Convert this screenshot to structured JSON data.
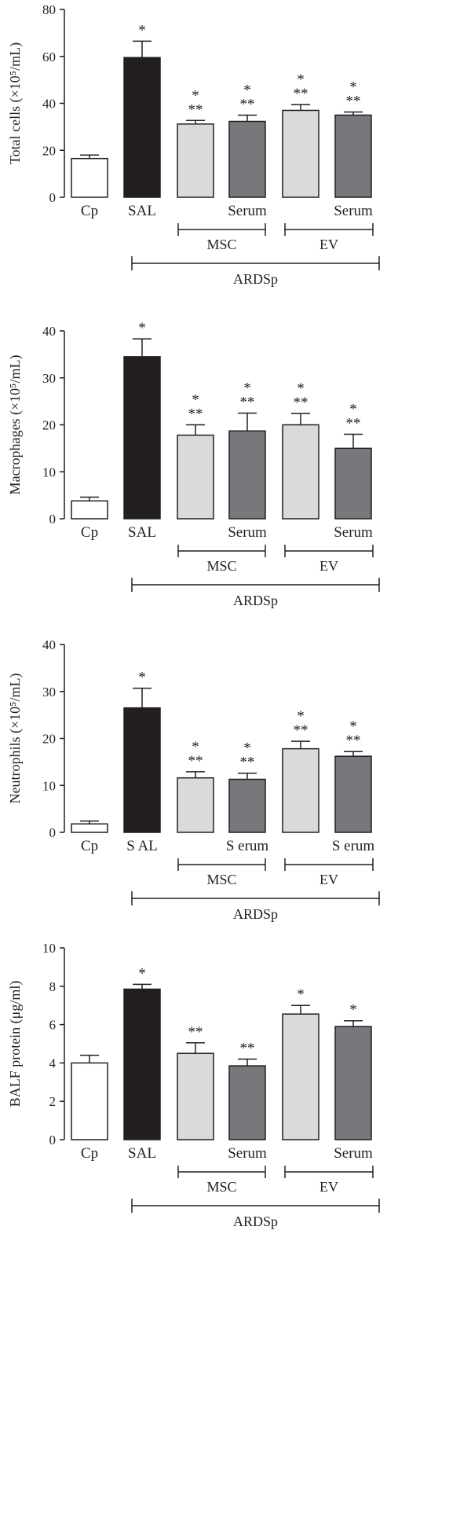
{
  "colors": {
    "axis": "#231f20",
    "white_bar": "#ffffff",
    "black_bar": "#231f20",
    "light_gray_bar": "#d9dadb",
    "dark_gray_bar": "#77787b"
  },
  "chart_data": [
    {
      "type": "bar",
      "ylabel": "Total cells (×10⁵/mL)",
      "ylim": [
        0,
        80
      ],
      "yticks": [
        "0",
        "20",
        "40",
        "60",
        "80"
      ],
      "categories": [
        "Cp",
        "SAL",
        "",
        "Serum",
        "",
        "Serum"
      ],
      "values": [
        16.5,
        59.5,
        31.2,
        32.3,
        37.0,
        35.0
      ],
      "errors": [
        1.5,
        7.0,
        1.5,
        2.7,
        2.5,
        1.3
      ],
      "fills": [
        "white",
        "black",
        "lightgray",
        "darkgray",
        "lightgray",
        "darkgray"
      ],
      "significance": [
        [],
        [
          "*"
        ],
        [
          "*",
          "**"
        ],
        [
          "*",
          "**"
        ],
        [
          "*",
          "**"
        ],
        [
          "*",
          "**"
        ]
      ],
      "groups": [
        "MSC",
        "EV"
      ],
      "supergroup": "ARDSp"
    },
    {
      "type": "bar",
      "ylabel": "Macrophages (×10⁵/mL)",
      "ylim": [
        0,
        40
      ],
      "yticks": [
        "0",
        "10",
        "20",
        "30",
        "40"
      ],
      "categories": [
        "Cp",
        "SAL",
        "",
        "Serum",
        "",
        "Serum"
      ],
      "values": [
        3.8,
        34.5,
        17.8,
        18.7,
        20.0,
        15.0
      ],
      "errors": [
        0.8,
        3.8,
        2.2,
        3.8,
        2.4,
        3.0
      ],
      "fills": [
        "white",
        "black",
        "lightgray",
        "darkgray",
        "lightgray",
        "darkgray"
      ],
      "significance": [
        [],
        [
          "*"
        ],
        [
          "*",
          "**"
        ],
        [
          "*",
          "**"
        ],
        [
          "*",
          "**"
        ],
        [
          "*",
          "**"
        ]
      ],
      "groups": [
        "MSC",
        "EV"
      ],
      "supergroup": "ARDSp"
    },
    {
      "type": "bar",
      "ylabel": "Neutrophils (×10⁵/mL)",
      "ylim": [
        0,
        40
      ],
      "yticks": [
        "0",
        "10",
        "20",
        "30",
        "40"
      ],
      "categories": [
        "Cp",
        "S AL",
        "",
        "S erum",
        "",
        "S erum"
      ],
      "values": [
        1.8,
        26.5,
        11.6,
        11.3,
        17.8,
        16.2
      ],
      "errors": [
        0.6,
        4.2,
        1.3,
        1.3,
        1.6,
        1.0
      ],
      "fills": [
        "white",
        "black",
        "lightgray",
        "darkgray",
        "lightgray",
        "darkgray"
      ],
      "significance": [
        [],
        [
          "*"
        ],
        [
          "*",
          "**"
        ],
        [
          "*",
          "**"
        ],
        [
          "*",
          "**"
        ],
        [
          "*",
          "**"
        ]
      ],
      "groups": [
        "MSC",
        "EV"
      ],
      "supergroup": "ARDSp"
    },
    {
      "type": "bar",
      "ylabel": "BALF protein (μg/ml)",
      "ylim": [
        0,
        10
      ],
      "yticks": [
        "0",
        "2",
        "4",
        "6",
        "8",
        "10"
      ],
      "categories": [
        "Cp",
        "SAL",
        "",
        "Serum",
        "",
        "Serum"
      ],
      "values": [
        4.0,
        7.85,
        4.5,
        3.85,
        6.55,
        5.9
      ],
      "errors": [
        0.4,
        0.25,
        0.55,
        0.35,
        0.45,
        0.3
      ],
      "fills": [
        "white",
        "black",
        "lightgray",
        "darkgray",
        "lightgray",
        "darkgray"
      ],
      "significance": [
        [],
        [
          "*"
        ],
        [
          "**"
        ],
        [
          "**"
        ],
        [
          "*"
        ],
        [
          "*"
        ]
      ],
      "groups": [
        "MSC",
        "EV"
      ],
      "supergroup": "ARDSp"
    }
  ]
}
